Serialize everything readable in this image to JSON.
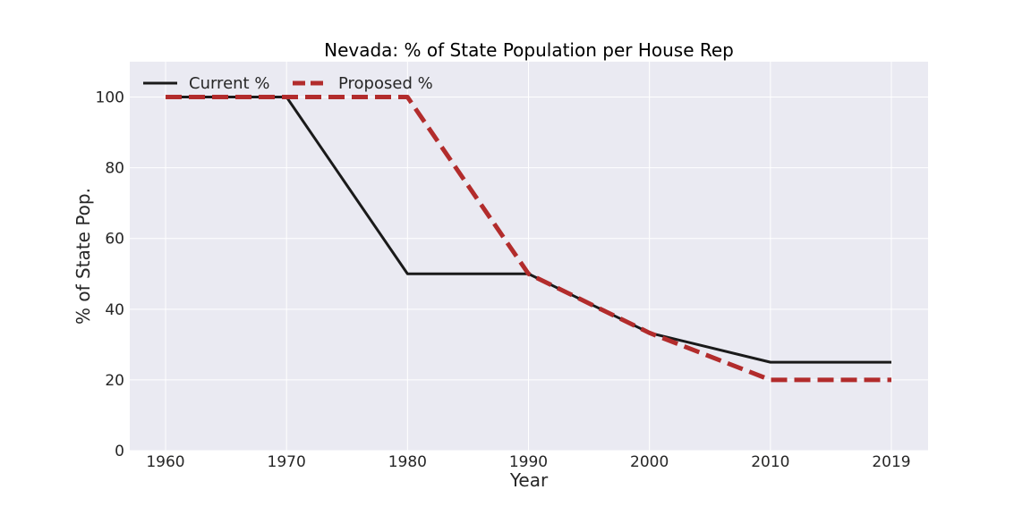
{
  "chart_data": {
    "type": "line",
    "title": "Nevada: % of State Population per House Rep",
    "xlabel": "Year",
    "ylabel": "% of State Pop.",
    "x": [
      1960,
      1970,
      1980,
      1990,
      2000,
      2010,
      2019
    ],
    "ylim": [
      0,
      110
    ],
    "yticks": [
      0,
      20,
      40,
      60,
      80,
      100
    ],
    "grid": true,
    "legend": "top-left",
    "background": "#eaeaf2",
    "series": [
      {
        "name": "Current %",
        "values": [
          100,
          100,
          50,
          50,
          33.3,
          25,
          25
        ],
        "color": "#1a1a1a",
        "style": "solid"
      },
      {
        "name": "Proposed %",
        "values": [
          100,
          100,
          100,
          50,
          33.3,
          20,
          20
        ],
        "color": "#b22c2c",
        "style": "dashed"
      }
    ]
  }
}
